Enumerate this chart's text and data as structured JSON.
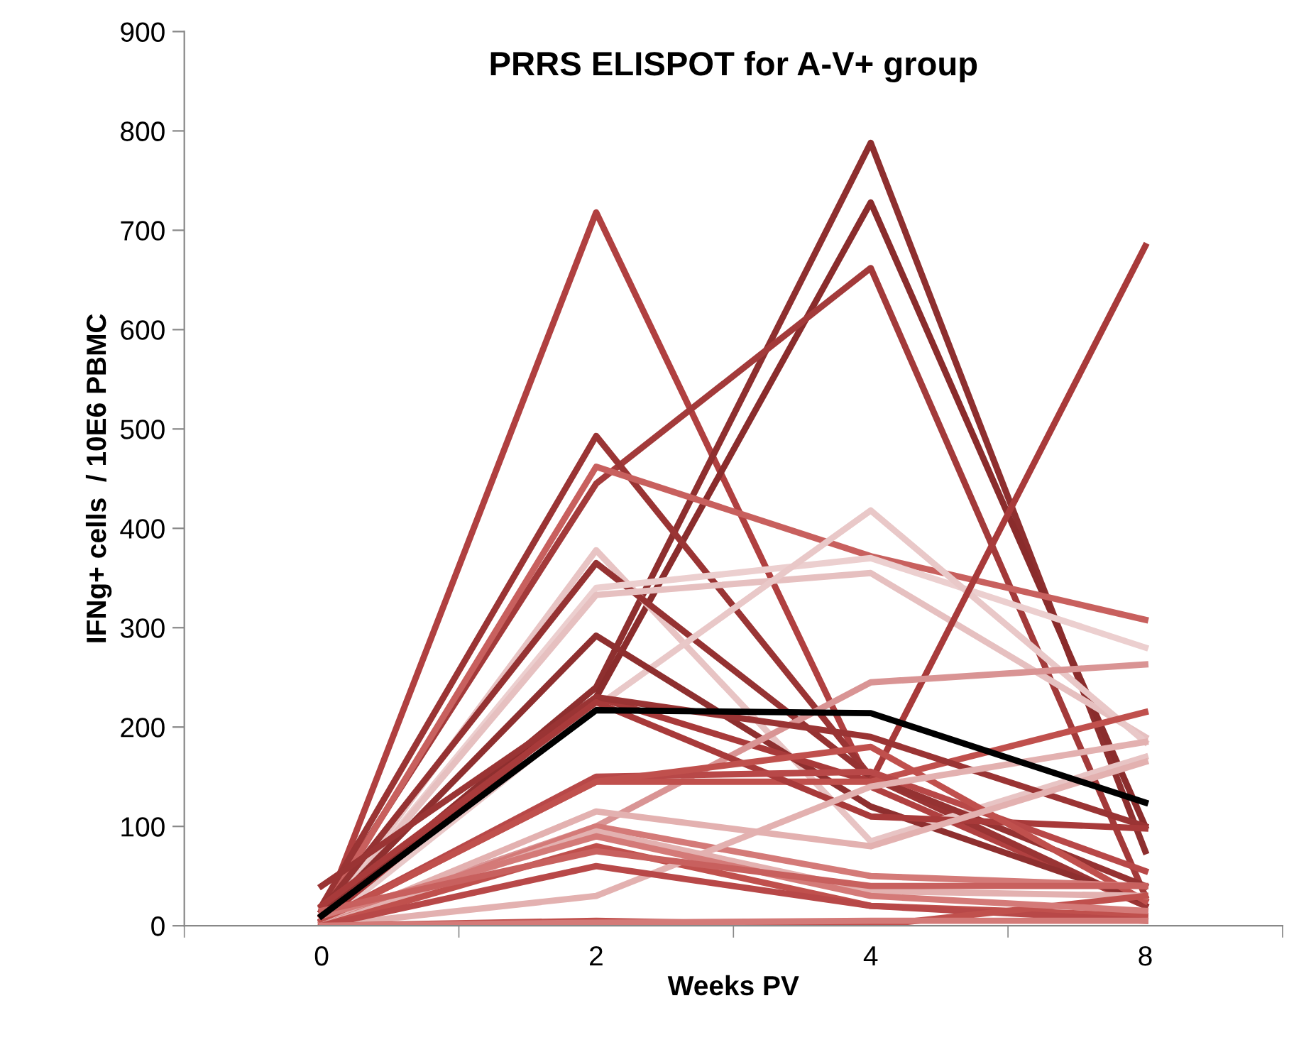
{
  "chart_data": {
    "type": "line",
    "title": "PRRS ELISPOT for A-V+ group",
    "xlabel": "Weeks PV",
    "ylabel": "IFNg+ cells  / 10E6 PBMC",
    "categories": [
      "0",
      "2",
      "4",
      "8"
    ],
    "ylim": [
      0,
      900
    ],
    "yticks": [
      0,
      100,
      200,
      300,
      400,
      500,
      600,
      700,
      800,
      900
    ],
    "grid": false,
    "legend": false,
    "marker": "none",
    "line_style": "solid",
    "series": [
      {
        "color": "#b04040",
        "values": [
          5,
          718,
          140,
          20
        ]
      },
      {
        "color": "#8e2f2f",
        "values": [
          10,
          240,
          788,
          75
        ]
      },
      {
        "color": "#8a2c2c",
        "values": [
          10,
          230,
          728,
          100
        ]
      },
      {
        "color": "#a33a3a",
        "values": [
          15,
          445,
          662,
          30
        ]
      },
      {
        "color": "#9a3434",
        "values": [
          20,
          493,
          150,
          20
        ]
      },
      {
        "color": "#c8605e",
        "values": [
          10,
          462,
          372,
          308
        ]
      },
      {
        "color": "#e8c4c4",
        "values": [
          5,
          378,
          85,
          170
        ]
      },
      {
        "color": "#953232",
        "values": [
          15,
          365,
          150,
          40
        ]
      },
      {
        "color": "#eccfcf",
        "values": [
          5,
          340,
          370,
          280
        ]
      },
      {
        "color": "#e6c0c0",
        "values": [
          5,
          333,
          355,
          190
        ]
      },
      {
        "color": "#e9c8c8",
        "values": [
          0,
          220,
          418,
          185
        ]
      },
      {
        "color": "#8e2f2f",
        "values": [
          10,
          292,
          120,
          25
        ]
      },
      {
        "color": "#a83a3a",
        "values": [
          5,
          230,
          145,
          684
        ]
      },
      {
        "color": "#d99494",
        "values": [
          5,
          100,
          245,
          263
        ]
      },
      {
        "color": "#c0504d",
        "values": [
          5,
          145,
          145,
          215
        ]
      },
      {
        "color": "#9a3434",
        "values": [
          40,
          230,
          190,
          100
        ]
      },
      {
        "color": "#a83a3a",
        "values": [
          20,
          225,
          110,
          98
        ]
      },
      {
        "color": "#b84848",
        "values": [
          5,
          150,
          155,
          55
        ]
      },
      {
        "color": "#c0504d",
        "values": [
          5,
          145,
          180,
          25
        ]
      },
      {
        "color": "#e3b1b0",
        "values": [
          0,
          115,
          80,
          165
        ]
      },
      {
        "color": "#d47a78",
        "values": [
          0,
          100,
          50,
          40
        ]
      },
      {
        "color": "#e3b1b0",
        "values": [
          0,
          95,
          35,
          30
        ]
      },
      {
        "color": "#c0504d",
        "values": [
          0,
          80,
          20,
          10
        ]
      },
      {
        "color": "#e3b1b0",
        "values": [
          0,
          30,
          140,
          185
        ]
      },
      {
        "color": "#b84848",
        "values": [
          0,
          60,
          20,
          5
        ]
      },
      {
        "color": "#c0504d",
        "values": [
          0,
          5,
          0,
          30
        ]
      },
      {
        "color": "#d47a78",
        "values": [
          0,
          3,
          5,
          5
        ]
      },
      {
        "color": "#d47a78",
        "values": [
          10,
          90,
          30,
          15
        ]
      },
      {
        "color": "#c8605e",
        "values": [
          15,
          75,
          40,
          40
        ]
      },
      {
        "color": "#000000",
        "values": [
          10,
          217,
          214,
          124
        ]
      }
    ]
  }
}
